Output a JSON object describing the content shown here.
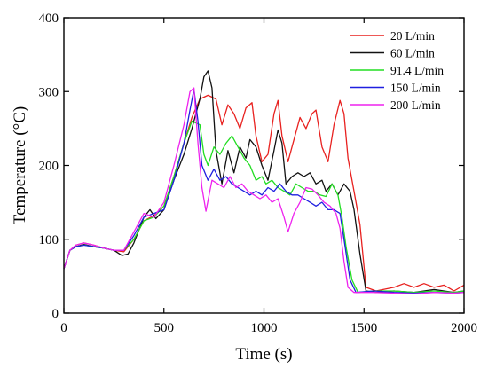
{
  "chart_data": {
    "type": "line",
    "xlabel": "Time (s)",
    "ylabel": "Temperature (°C)",
    "xlim": [
      0,
      2000
    ],
    "ylim": [
      0,
      400
    ],
    "xticks": [
      0,
      500,
      1000,
      1500,
      2000
    ],
    "yticks": [
      0,
      100,
      200,
      300,
      400
    ],
    "grid": false,
    "legend_position": "top-right",
    "series": [
      {
        "name": "20 L/min",
        "color": "#e8211f",
        "points": [
          [
            0,
            60
          ],
          [
            30,
            85
          ],
          [
            60,
            92
          ],
          [
            100,
            95
          ],
          [
            150,
            92
          ],
          [
            200,
            88
          ],
          [
            250,
            85
          ],
          [
            300,
            83
          ],
          [
            350,
            100
          ],
          [
            400,
            125
          ],
          [
            450,
            132
          ],
          [
            500,
            145
          ],
          [
            550,
            185
          ],
          [
            600,
            230
          ],
          [
            640,
            265
          ],
          [
            680,
            290
          ],
          [
            720,
            295
          ],
          [
            760,
            290
          ],
          [
            790,
            255
          ],
          [
            820,
            282
          ],
          [
            850,
            270
          ],
          [
            880,
            250
          ],
          [
            910,
            278
          ],
          [
            940,
            285
          ],
          [
            960,
            240
          ],
          [
            990,
            205
          ],
          [
            1020,
            215
          ],
          [
            1050,
            270
          ],
          [
            1070,
            288
          ],
          [
            1090,
            240
          ],
          [
            1120,
            205
          ],
          [
            1150,
            235
          ],
          [
            1180,
            265
          ],
          [
            1210,
            250
          ],
          [
            1240,
            270
          ],
          [
            1260,
            275
          ],
          [
            1290,
            225
          ],
          [
            1320,
            205
          ],
          [
            1350,
            255
          ],
          [
            1380,
            288
          ],
          [
            1400,
            270
          ],
          [
            1420,
            210
          ],
          [
            1450,
            165
          ],
          [
            1480,
            120
          ],
          [
            1510,
            35
          ],
          [
            1560,
            30
          ],
          [
            1650,
            35
          ],
          [
            1700,
            40
          ],
          [
            1750,
            35
          ],
          [
            1800,
            40
          ],
          [
            1850,
            35
          ],
          [
            1900,
            38
          ],
          [
            1950,
            30
          ],
          [
            2000,
            38
          ]
        ]
      },
      {
        "name": "60 L/min",
        "color": "#111111",
        "points": [
          [
            0,
            60
          ],
          [
            30,
            85
          ],
          [
            60,
            90
          ],
          [
            100,
            93
          ],
          [
            150,
            90
          ],
          [
            200,
            88
          ],
          [
            250,
            85
          ],
          [
            290,
            78
          ],
          [
            320,
            80
          ],
          [
            350,
            95
          ],
          [
            400,
            130
          ],
          [
            430,
            140
          ],
          [
            460,
            128
          ],
          [
            500,
            140
          ],
          [
            550,
            180
          ],
          [
            600,
            215
          ],
          [
            640,
            250
          ],
          [
            680,
            290
          ],
          [
            700,
            320
          ],
          [
            720,
            328
          ],
          [
            740,
            305
          ],
          [
            760,
            220
          ],
          [
            790,
            175
          ],
          [
            820,
            220
          ],
          [
            850,
            190
          ],
          [
            880,
            225
          ],
          [
            910,
            210
          ],
          [
            930,
            235
          ],
          [
            960,
            225
          ],
          [
            990,
            200
          ],
          [
            1020,
            180
          ],
          [
            1050,
            220
          ],
          [
            1070,
            248
          ],
          [
            1090,
            230
          ],
          [
            1110,
            175
          ],
          [
            1140,
            185
          ],
          [
            1170,
            190
          ],
          [
            1200,
            185
          ],
          [
            1230,
            190
          ],
          [
            1260,
            175
          ],
          [
            1290,
            180
          ],
          [
            1310,
            165
          ],
          [
            1340,
            175
          ],
          [
            1370,
            160
          ],
          [
            1400,
            175
          ],
          [
            1430,
            165
          ],
          [
            1450,
            140
          ],
          [
            1480,
            80
          ],
          [
            1510,
            30
          ],
          [
            1560,
            28
          ],
          [
            1650,
            30
          ],
          [
            1750,
            28
          ],
          [
            1850,
            32
          ],
          [
            1950,
            28
          ],
          [
            2000,
            30
          ]
        ]
      },
      {
        "name": "91.4 L/min",
        "color": "#22dd22",
        "points": [
          [
            0,
            60
          ],
          [
            30,
            85
          ],
          [
            60,
            90
          ],
          [
            100,
            92
          ],
          [
            150,
            90
          ],
          [
            200,
            88
          ],
          [
            250,
            85
          ],
          [
            300,
            85
          ],
          [
            350,
            100
          ],
          [
            400,
            125
          ],
          [
            450,
            130
          ],
          [
            500,
            145
          ],
          [
            550,
            185
          ],
          [
            600,
            230
          ],
          [
            640,
            260
          ],
          [
            680,
            255
          ],
          [
            700,
            215
          ],
          [
            720,
            200
          ],
          [
            750,
            225
          ],
          [
            780,
            215
          ],
          [
            810,
            230
          ],
          [
            840,
            240
          ],
          [
            870,
            225
          ],
          [
            900,
            210
          ],
          [
            930,
            200
          ],
          [
            960,
            180
          ],
          [
            990,
            185
          ],
          [
            1010,
            175
          ],
          [
            1040,
            180
          ],
          [
            1070,
            170
          ],
          [
            1100,
            165
          ],
          [
            1130,
            160
          ],
          [
            1160,
            175
          ],
          [
            1190,
            170
          ],
          [
            1220,
            165
          ],
          [
            1250,
            165
          ],
          [
            1280,
            160
          ],
          [
            1310,
            158
          ],
          [
            1340,
            175
          ],
          [
            1370,
            160
          ],
          [
            1390,
            130
          ],
          [
            1410,
            90
          ],
          [
            1440,
            45
          ],
          [
            1470,
            28
          ],
          [
            1550,
            30
          ],
          [
            1650,
            30
          ],
          [
            1750,
            28
          ],
          [
            1850,
            30
          ],
          [
            1950,
            28
          ],
          [
            2000,
            30
          ]
        ]
      },
      {
        "name": "150 L/min",
        "color": "#1f1fe0",
        "points": [
          [
            0,
            60
          ],
          [
            30,
            85
          ],
          [
            60,
            90
          ],
          [
            100,
            92
          ],
          [
            150,
            90
          ],
          [
            200,
            88
          ],
          [
            250,
            85
          ],
          [
            300,
            85
          ],
          [
            350,
            105
          ],
          [
            400,
            130
          ],
          [
            450,
            135
          ],
          [
            500,
            140
          ],
          [
            550,
            180
          ],
          [
            600,
            230
          ],
          [
            630,
            275
          ],
          [
            650,
            303
          ],
          [
            670,
            260
          ],
          [
            690,
            200
          ],
          [
            720,
            180
          ],
          [
            750,
            195
          ],
          [
            780,
            180
          ],
          [
            810,
            185
          ],
          [
            840,
            175
          ],
          [
            870,
            170
          ],
          [
            900,
            165
          ],
          [
            930,
            160
          ],
          [
            960,
            165
          ],
          [
            990,
            160
          ],
          [
            1020,
            170
          ],
          [
            1050,
            165
          ],
          [
            1080,
            175
          ],
          [
            1110,
            165
          ],
          [
            1140,
            160
          ],
          [
            1170,
            160
          ],
          [
            1200,
            155
          ],
          [
            1230,
            150
          ],
          [
            1260,
            145
          ],
          [
            1290,
            150
          ],
          [
            1320,
            140
          ],
          [
            1350,
            140
          ],
          [
            1380,
            135
          ],
          [
            1400,
            100
          ],
          [
            1430,
            45
          ],
          [
            1460,
            28
          ],
          [
            1550,
            30
          ],
          [
            1650,
            28
          ],
          [
            1750,
            27
          ],
          [
            1850,
            28
          ],
          [
            1950,
            27
          ],
          [
            2000,
            28
          ]
        ]
      },
      {
        "name": "200 L/min",
        "color": "#ee22ee",
        "points": [
          [
            0,
            60
          ],
          [
            30,
            85
          ],
          [
            60,
            92
          ],
          [
            100,
            95
          ],
          [
            150,
            92
          ],
          [
            200,
            88
          ],
          [
            250,
            85
          ],
          [
            300,
            85
          ],
          [
            350,
            110
          ],
          [
            400,
            135
          ],
          [
            450,
            130
          ],
          [
            500,
            150
          ],
          [
            550,
            200
          ],
          [
            600,
            255
          ],
          [
            630,
            300
          ],
          [
            650,
            305
          ],
          [
            670,
            230
          ],
          [
            690,
            170
          ],
          [
            710,
            138
          ],
          [
            740,
            180
          ],
          [
            770,
            175
          ],
          [
            800,
            170
          ],
          [
            830,
            185
          ],
          [
            860,
            170
          ],
          [
            890,
            175
          ],
          [
            920,
            165
          ],
          [
            950,
            160
          ],
          [
            980,
            155
          ],
          [
            1010,
            160
          ],
          [
            1040,
            150
          ],
          [
            1070,
            155
          ],
          [
            1100,
            130
          ],
          [
            1120,
            110
          ],
          [
            1150,
            135
          ],
          [
            1180,
            150
          ],
          [
            1210,
            170
          ],
          [
            1240,
            168
          ],
          [
            1270,
            160
          ],
          [
            1300,
            150
          ],
          [
            1330,
            145
          ],
          [
            1360,
            135
          ],
          [
            1380,
            115
          ],
          [
            1400,
            70
          ],
          [
            1420,
            35
          ],
          [
            1450,
            28
          ],
          [
            1550,
            28
          ],
          [
            1650,
            27
          ],
          [
            1750,
            26
          ],
          [
            1850,
            28
          ],
          [
            1950,
            27
          ],
          [
            2000,
            28
          ]
        ]
      }
    ]
  }
}
